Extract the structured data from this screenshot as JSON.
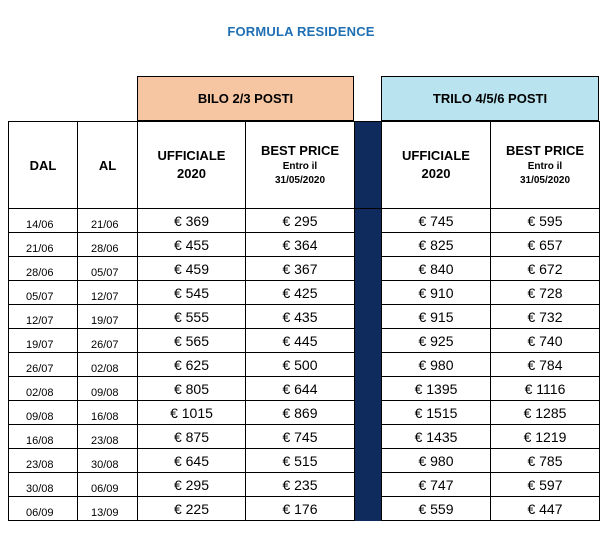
{
  "title": "FORMULA RESIDENCE",
  "groups": {
    "bilo": "BILO 2/3 POSTI",
    "trilo": "TRILO 4/5/6 POSTI"
  },
  "headers": {
    "dal": "DAL",
    "al": "AL",
    "ufficiale_1": "UFFICIALE",
    "ufficiale_2": "2020",
    "best_1": "BEST PRICE",
    "best_2": "Entro il",
    "best_3": "31/05/2020"
  },
  "rows": [
    {
      "dal": "14/06",
      "al": "21/06",
      "bilo_uff": "€ 369",
      "bilo_best": "€ 295",
      "trilo_uff": "€ 745",
      "trilo_best": "€ 595"
    },
    {
      "dal": "21/06",
      "al": "28/06",
      "bilo_uff": "€ 455",
      "bilo_best": "€ 364",
      "trilo_uff": "€ 825",
      "trilo_best": "€ 657"
    },
    {
      "dal": "28/06",
      "al": "05/07",
      "bilo_uff": "€ 459",
      "bilo_best": "€ 367",
      "trilo_uff": "€ 840",
      "trilo_best": "€ 672"
    },
    {
      "dal": "05/07",
      "al": "12/07",
      "bilo_uff": "€ 545",
      "bilo_best": "€ 425",
      "trilo_uff": "€ 910",
      "trilo_best": "€ 728"
    },
    {
      "dal": "12/07",
      "al": "19/07",
      "bilo_uff": "€ 555",
      "bilo_best": "€ 435",
      "trilo_uff": "€ 915",
      "trilo_best": "€ 732"
    },
    {
      "dal": "19/07",
      "al": "26/07",
      "bilo_uff": "€ 565",
      "bilo_best": "€ 445",
      "trilo_uff": "€ 925",
      "trilo_best": "€ 740"
    },
    {
      "dal": "26/07",
      "al": "02/08",
      "bilo_uff": "€ 625",
      "bilo_best": "€ 500",
      "trilo_uff": "€ 980",
      "trilo_best": "€ 784"
    },
    {
      "dal": "02/08",
      "al": "09/08",
      "bilo_uff": "€ 805",
      "bilo_best": "€ 644",
      "trilo_uff": "€ 1395",
      "trilo_best": "€ 1116"
    },
    {
      "dal": "09/08",
      "al": "16/08",
      "bilo_uff": "€ 1015",
      "bilo_best": "€ 869",
      "trilo_uff": "€ 1515",
      "trilo_best": "€ 1285"
    },
    {
      "dal": "16/08",
      "al": "23/08",
      "bilo_uff": "€ 875",
      "bilo_best": "€ 745",
      "trilo_uff": "€ 1435",
      "trilo_best": "€ 1219"
    },
    {
      "dal": "23/08",
      "al": "30/08",
      "bilo_uff": "€ 645",
      "bilo_best": "€ 515",
      "trilo_uff": "€ 980",
      "trilo_best": "€ 785"
    },
    {
      "dal": "30/08",
      "al": "06/09",
      "bilo_uff": "€ 295",
      "bilo_best": "€ 235",
      "trilo_uff": "€ 747",
      "trilo_best": "€ 597"
    },
    {
      "dal": "06/09",
      "al": "13/09",
      "bilo_uff": "€ 225",
      "bilo_best": "€ 176",
      "trilo_uff": "€ 559",
      "trilo_best": "€ 447"
    }
  ],
  "colors": {
    "title": "#1f6fb5",
    "bilo_header": "#f6c6a2",
    "trilo_header": "#b9e3ee",
    "separator": "#0f2a5c"
  }
}
